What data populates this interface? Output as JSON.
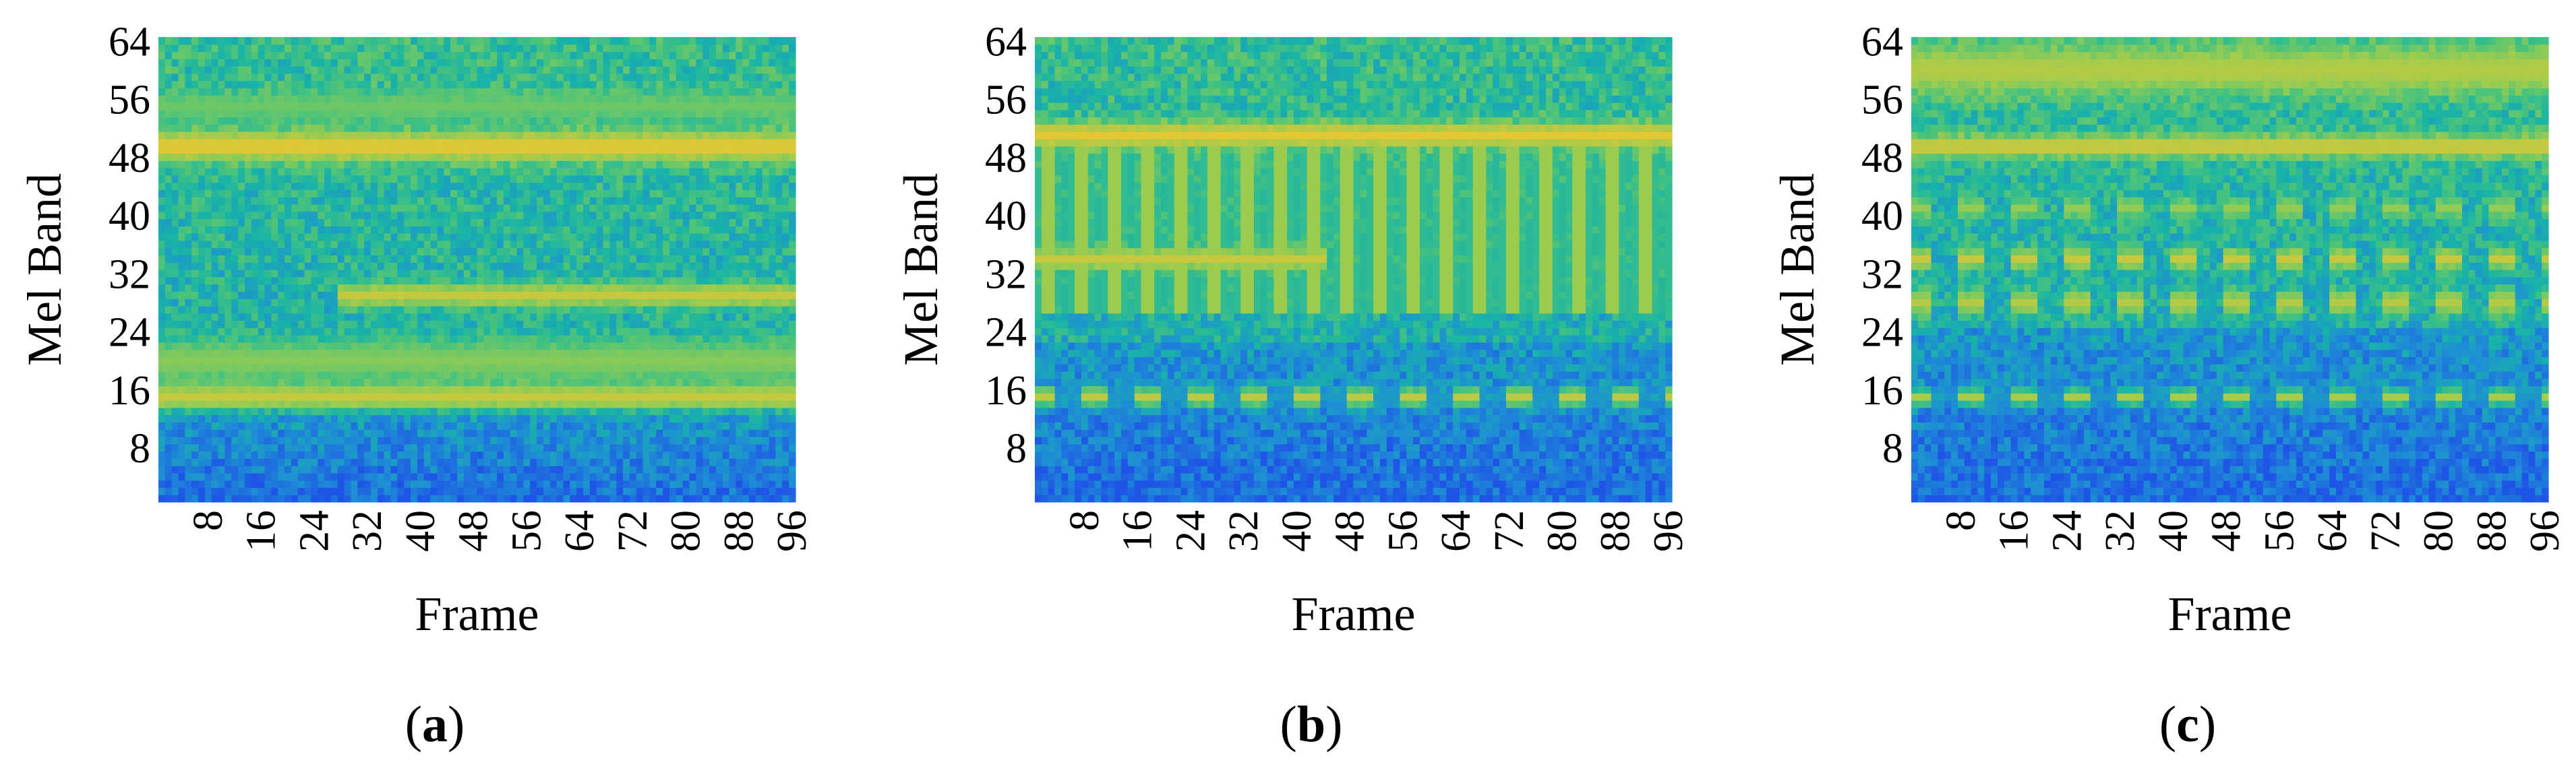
{
  "chart_data": [
    {
      "type": "heatmap",
      "caption_letter": "a",
      "xlabel": "Frame",
      "ylabel": "Mel Band",
      "xlim": [
        1,
        96
      ],
      "ylim": [
        1,
        64
      ],
      "xticks": [
        8,
        16,
        24,
        32,
        40,
        48,
        56,
        64,
        72,
        80,
        88,
        96
      ],
      "yticks": [
        8,
        16,
        24,
        32,
        40,
        48,
        56,
        64
      ],
      "colormap": [
        "#1f55e6",
        "#1e8fd4",
        "#19b4a6",
        "#4cc37a",
        "#9ccc4f",
        "#e4c735"
      ],
      "bands": [
        {
          "mel": 49.5,
          "width": 2.2,
          "level": 1.0,
          "pattern": "continuous",
          "from_frame": 1,
          "to_frame": 96
        },
        {
          "mel": 29,
          "width": 1.6,
          "level": 0.85,
          "pattern": "continuous",
          "from_frame": 28,
          "to_frame": 96
        },
        {
          "mel": 20,
          "width": 3.0,
          "level": 0.55,
          "pattern": "continuous",
          "from_frame": 1,
          "to_frame": 96
        },
        {
          "mel": 15,
          "width": 1.8,
          "level": 0.85,
          "pattern": "continuous",
          "from_frame": 1,
          "to_frame": 96
        },
        {
          "mel": 55,
          "width": 2.0,
          "level": 0.45,
          "pattern": "continuous",
          "from_frame": 1,
          "to_frame": 96
        }
      ],
      "low_band_limit": 13,
      "seed": 11
    },
    {
      "type": "heatmap",
      "caption_letter": "b",
      "xlabel": "Frame",
      "ylabel": "Mel Band",
      "xlim": [
        1,
        96
      ],
      "ylim": [
        1,
        64
      ],
      "xticks": [
        8,
        16,
        24,
        32,
        40,
        48,
        56,
        64,
        72,
        80,
        88,
        96
      ],
      "yticks": [
        8,
        16,
        24,
        32,
        40,
        48,
        56,
        64
      ],
      "colormap": [
        "#1f55e6",
        "#1e8fd4",
        "#19b4a6",
        "#4cc37a",
        "#9ccc4f",
        "#e4c735"
      ],
      "bands": [
        {
          "mel": 51,
          "width": 1.8,
          "level": 1.0,
          "pattern": "continuous",
          "from_frame": 1,
          "to_frame": 96
        },
        {
          "mel": 34,
          "width": 1.6,
          "level": 0.85,
          "pattern": "continuous",
          "from_frame": 1,
          "to_frame": 44
        },
        {
          "mel": 15,
          "width": 1.4,
          "level": 0.8,
          "pattern": "dashed",
          "from_frame": 1,
          "to_frame": 96
        }
      ],
      "vertical_stripes": {
        "period_frames": 5,
        "from_mel": 27,
        "to_mel": 49,
        "level": 0.9
      },
      "low_band_limit": 22,
      "seed": 23
    },
    {
      "type": "heatmap",
      "caption_letter": "c",
      "xlabel": "Frame",
      "ylabel": "Mel Band",
      "xlim": [
        1,
        96
      ],
      "ylim": [
        1,
        64
      ],
      "xticks": [
        8,
        16,
        24,
        32,
        40,
        48,
        56,
        64,
        72,
        80,
        88,
        96
      ],
      "yticks": [
        8,
        16,
        24,
        32,
        40,
        48,
        56,
        64
      ],
      "colormap": [
        "#1f55e6",
        "#1e8fd4",
        "#19b4a6",
        "#4cc37a",
        "#9ccc4f",
        "#e4c735"
      ],
      "bands": [
        {
          "mel": 60,
          "width": 3.5,
          "level": 0.75,
          "pattern": "continuous",
          "from_frame": 1,
          "to_frame": 96
        },
        {
          "mel": 49.5,
          "width": 1.6,
          "level": 0.9,
          "pattern": "continuous",
          "from_frame": 1,
          "to_frame": 96
        },
        {
          "mel": 41,
          "width": 1.4,
          "level": 0.6,
          "pattern": "dashed",
          "from_frame": 1,
          "to_frame": 96
        },
        {
          "mel": 34,
          "width": 1.4,
          "level": 0.85,
          "pattern": "dashed",
          "from_frame": 1,
          "to_frame": 96
        },
        {
          "mel": 28,
          "width": 1.8,
          "level": 0.75,
          "pattern": "dashed",
          "from_frame": 1,
          "to_frame": 96
        },
        {
          "mel": 15,
          "width": 1.2,
          "level": 0.7,
          "pattern": "dashed",
          "from_frame": 1,
          "to_frame": 96
        }
      ],
      "low_band_limit": 24,
      "seed": 37
    }
  ]
}
